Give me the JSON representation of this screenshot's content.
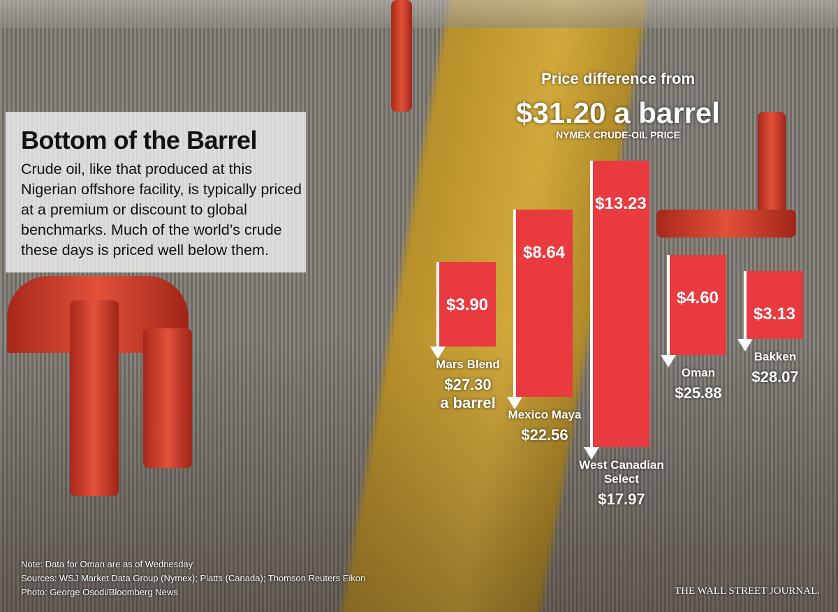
{
  "chart_data": {
    "type": "bar",
    "title": "Bottom of the Barrel",
    "subtitle": "Crude oil, like that produced at this Nigerian offshore facility, is typically priced at a premium or discount to global benchmarks. Much of the world’s crude these days is priced well below them.",
    "header": "Price difference from",
    "benchmark": 31.2,
    "benchmark_label": "$31.20 a barrel",
    "benchmark_name": "NYMEX CRUDE-OIL PRICE",
    "categories": [
      "Mars Blend",
      "Mexico Maya",
      "West Canadian Select",
      "Oman",
      "Bakken"
    ],
    "values": [
      3.9,
      8.64,
      13.23,
      4.6,
      3.13
    ],
    "value_labels": [
      "$3.90",
      "$8.64",
      "$13.23",
      "$4.60",
      "$3.13"
    ],
    "color": "#e93a40",
    "prices": [
      27.3,
      22.56,
      17.97,
      25.88,
      28.07
    ],
    "price_labels": [
      "$27.30",
      "$22.56",
      "$17.97",
      "$25.88",
      "$28.07"
    ],
    "price_unit": "a barrel",
    "notes": [
      "Note: Data for Oman are as of Wednesday",
      "Sources: WSJ Market Data Group (Nymex); Platts (Canada); Thomson Reuters Eikon",
      "Photo: George Osodi/Bloomberg News"
    ],
    "credit": "THE WALL STREET JOURNAL."
  }
}
